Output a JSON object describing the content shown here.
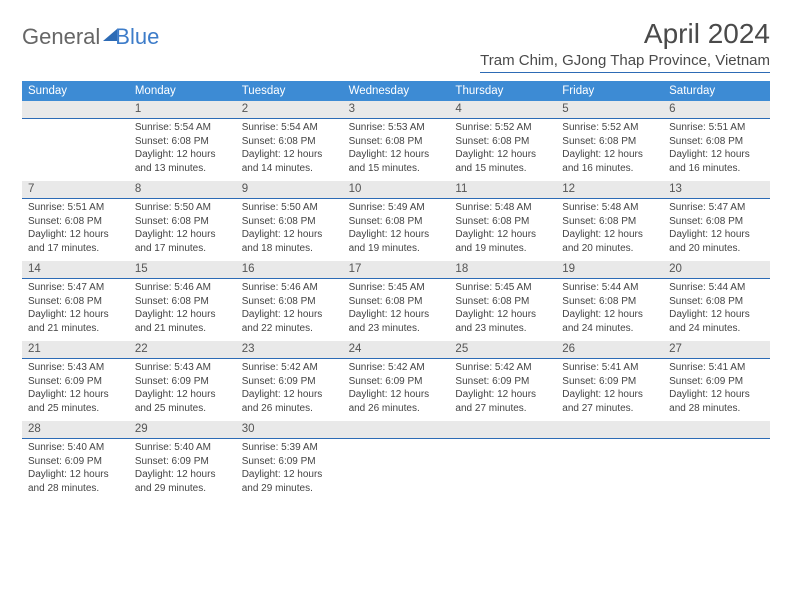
{
  "logo": {
    "text1": "General",
    "text2": "Blue"
  },
  "title": {
    "month": "April 2024",
    "location": "Tram Chim, GJong Thap Province, Vietnam"
  },
  "colors": {
    "header_bg": "#3d8bd4",
    "header_text": "#ffffff",
    "daynum_bg": "#e9e9e9",
    "daynum_border": "#2d6bb5",
    "body_text": "#444444",
    "title_text": "#4a4a4a",
    "logo_blue": "#3d7cc9"
  },
  "weekdays": [
    "Sunday",
    "Monday",
    "Tuesday",
    "Wednesday",
    "Thursday",
    "Friday",
    "Saturday"
  ],
  "layout": {
    "first_weekday_index": 1,
    "days_in_month": 30,
    "columns": 7
  },
  "days": [
    {
      "n": 1,
      "sunrise": "5:54 AM",
      "sunset": "6:08 PM",
      "daylight": "12 hours and 13 minutes."
    },
    {
      "n": 2,
      "sunrise": "5:54 AM",
      "sunset": "6:08 PM",
      "daylight": "12 hours and 14 minutes."
    },
    {
      "n": 3,
      "sunrise": "5:53 AM",
      "sunset": "6:08 PM",
      "daylight": "12 hours and 15 minutes."
    },
    {
      "n": 4,
      "sunrise": "5:52 AM",
      "sunset": "6:08 PM",
      "daylight": "12 hours and 15 minutes."
    },
    {
      "n": 5,
      "sunrise": "5:52 AM",
      "sunset": "6:08 PM",
      "daylight": "12 hours and 16 minutes."
    },
    {
      "n": 6,
      "sunrise": "5:51 AM",
      "sunset": "6:08 PM",
      "daylight": "12 hours and 16 minutes."
    },
    {
      "n": 7,
      "sunrise": "5:51 AM",
      "sunset": "6:08 PM",
      "daylight": "12 hours and 17 minutes."
    },
    {
      "n": 8,
      "sunrise": "5:50 AM",
      "sunset": "6:08 PM",
      "daylight": "12 hours and 17 minutes."
    },
    {
      "n": 9,
      "sunrise": "5:50 AM",
      "sunset": "6:08 PM",
      "daylight": "12 hours and 18 minutes."
    },
    {
      "n": 10,
      "sunrise": "5:49 AM",
      "sunset": "6:08 PM",
      "daylight": "12 hours and 19 minutes."
    },
    {
      "n": 11,
      "sunrise": "5:48 AM",
      "sunset": "6:08 PM",
      "daylight": "12 hours and 19 minutes."
    },
    {
      "n": 12,
      "sunrise": "5:48 AM",
      "sunset": "6:08 PM",
      "daylight": "12 hours and 20 minutes."
    },
    {
      "n": 13,
      "sunrise": "5:47 AM",
      "sunset": "6:08 PM",
      "daylight": "12 hours and 20 minutes."
    },
    {
      "n": 14,
      "sunrise": "5:47 AM",
      "sunset": "6:08 PM",
      "daylight": "12 hours and 21 minutes."
    },
    {
      "n": 15,
      "sunrise": "5:46 AM",
      "sunset": "6:08 PM",
      "daylight": "12 hours and 21 minutes."
    },
    {
      "n": 16,
      "sunrise": "5:46 AM",
      "sunset": "6:08 PM",
      "daylight": "12 hours and 22 minutes."
    },
    {
      "n": 17,
      "sunrise": "5:45 AM",
      "sunset": "6:08 PM",
      "daylight": "12 hours and 23 minutes."
    },
    {
      "n": 18,
      "sunrise": "5:45 AM",
      "sunset": "6:08 PM",
      "daylight": "12 hours and 23 minutes."
    },
    {
      "n": 19,
      "sunrise": "5:44 AM",
      "sunset": "6:08 PM",
      "daylight": "12 hours and 24 minutes."
    },
    {
      "n": 20,
      "sunrise": "5:44 AM",
      "sunset": "6:08 PM",
      "daylight": "12 hours and 24 minutes."
    },
    {
      "n": 21,
      "sunrise": "5:43 AM",
      "sunset": "6:09 PM",
      "daylight": "12 hours and 25 minutes."
    },
    {
      "n": 22,
      "sunrise": "5:43 AM",
      "sunset": "6:09 PM",
      "daylight": "12 hours and 25 minutes."
    },
    {
      "n": 23,
      "sunrise": "5:42 AM",
      "sunset": "6:09 PM",
      "daylight": "12 hours and 26 minutes."
    },
    {
      "n": 24,
      "sunrise": "5:42 AM",
      "sunset": "6:09 PM",
      "daylight": "12 hours and 26 minutes."
    },
    {
      "n": 25,
      "sunrise": "5:42 AM",
      "sunset": "6:09 PM",
      "daylight": "12 hours and 27 minutes."
    },
    {
      "n": 26,
      "sunrise": "5:41 AM",
      "sunset": "6:09 PM",
      "daylight": "12 hours and 27 minutes."
    },
    {
      "n": 27,
      "sunrise": "5:41 AM",
      "sunset": "6:09 PM",
      "daylight": "12 hours and 28 minutes."
    },
    {
      "n": 28,
      "sunrise": "5:40 AM",
      "sunset": "6:09 PM",
      "daylight": "12 hours and 28 minutes."
    },
    {
      "n": 29,
      "sunrise": "5:40 AM",
      "sunset": "6:09 PM",
      "daylight": "12 hours and 29 minutes."
    },
    {
      "n": 30,
      "sunrise": "5:39 AM",
      "sunset": "6:09 PM",
      "daylight": "12 hours and 29 minutes."
    }
  ],
  "labels": {
    "sunrise": "Sunrise:",
    "sunset": "Sunset:",
    "daylight": "Daylight:"
  }
}
